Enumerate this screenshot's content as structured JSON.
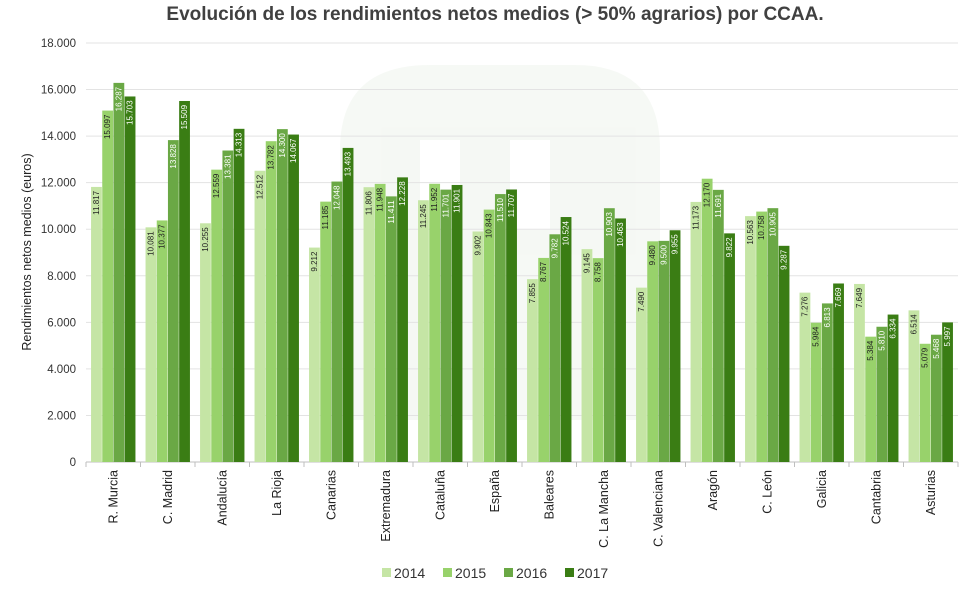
{
  "chart_data": {
    "type": "bar",
    "title": "Evolución de los rendimientos netos medios (> 50% agrarios) por CCAA.",
    "ylabel": "Rendimientos netos medios (euros)",
    "xlabel": "",
    "ylim": [
      0,
      18000
    ],
    "yticks": [
      "0",
      "2.000",
      "4.000",
      "6.000",
      "8.000",
      "10.000",
      "12.000",
      "14.000",
      "16.000",
      "18.000"
    ],
    "grid": true,
    "legend_position": "bottom",
    "categories": [
      "R. Murcia",
      "C. Madrid",
      "Andalucía",
      "La Rioja",
      "Canarias",
      "Extremadura",
      "Cataluña",
      "España",
      "Baleares",
      "C. La Mancha",
      "C. Valenciana",
      "Aragón",
      "C. León",
      "Galicia",
      "Cantabria",
      "Asturias"
    ],
    "series": [
      {
        "name": "2014",
        "color": "#c5e5a5",
        "values": [
          11817,
          10081,
          10255,
          12512,
          9212,
          11806,
          11245,
          9902,
          7855,
          9145,
          7490,
          11173,
          10563,
          7276,
          7649,
          6514
        ],
        "labels": [
          "11.817",
          "10.081",
          "10.255",
          "12.512",
          "9.212",
          "11.806",
          "11.245",
          "9.902",
          "7.855",
          "9.145",
          "7.490",
          "11.173",
          "10.563",
          "7.276",
          "7.649",
          "6.514"
        ]
      },
      {
        "name": "2015",
        "color": "#98d26b",
        "values": [
          15097,
          10377,
          12559,
          13782,
          11185,
          11948,
          11952,
          10843,
          8767,
          8758,
          9480,
          12170,
          10758,
          5984,
          5384,
          5079
        ],
        "labels": [
          "15.097",
          "10.377",
          "12.559",
          "13.782",
          "11.185",
          "11.948",
          "11.952",
          "10.843",
          "8.767",
          "8.758",
          "9.480",
          "12.170",
          "10.758",
          "5.984",
          "5.384",
          "5.079"
        ]
      },
      {
        "name": "2016",
        "color": "#6aa845",
        "values": [
          16287,
          13828,
          13381,
          14300,
          12048,
          11411,
          11701,
          11510,
          9782,
          10903,
          9500,
          11691,
          10905,
          6813,
          5810,
          5468
        ],
        "labels": [
          "16.287",
          "13.828",
          "13.381",
          "14.300",
          "12.048",
          "11.411",
          "11.701",
          "11.510",
          "9.782",
          "10.903",
          "9.500",
          "11.691",
          "10.905",
          "6.813",
          "5.810",
          "5.468"
        ]
      },
      {
        "name": "2017",
        "color": "#3a7d14",
        "values": [
          15703,
          15509,
          14313,
          14067,
          13493,
          12228,
          11901,
          11707,
          10524,
          10463,
          9955,
          9822,
          9287,
          7669,
          6334,
          5997
        ],
        "labels": [
          "15.703",
          "15.509",
          "14.313",
          "14.067",
          "13.493",
          "12.228",
          "11.901",
          "11.707",
          "10.524",
          "10.463",
          "9.955",
          "9.822",
          "9.287",
          "7.669",
          "6.334",
          "5.997"
        ]
      }
    ]
  }
}
